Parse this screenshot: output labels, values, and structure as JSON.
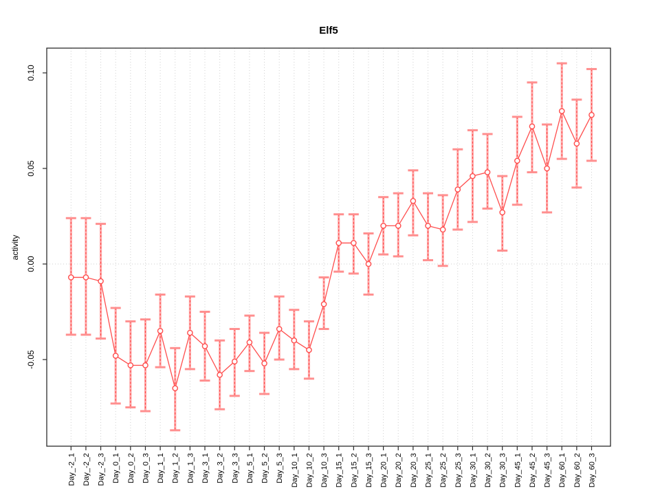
{
  "title": "Elf5",
  "y_axis_label": "activity",
  "chart_data": {
    "type": "scatter",
    "subtype": "points-with-error-bars",
    "title": "Elf5",
    "xlabel": "",
    "ylabel": "activity",
    "ylim": [
      -0.095,
      0.113
    ],
    "y_ticks": [
      0.1,
      0.05,
      0.0,
      -0.05
    ],
    "y_tick_labels": [
      "0.10",
      "0.05",
      "0.00",
      "-0.05"
    ],
    "grid": "vertical-dotted-at-each-category-plus-zero-line",
    "legend": "none",
    "categories": [
      "Day_-2_1",
      "Day_-2_2",
      "Day_-2_3",
      "Day_0_1",
      "Day_0_2",
      "Day_0_3",
      "Day_1_1",
      "Day_1_2",
      "Day_1_3",
      "Day_3_1",
      "Day_3_2",
      "Day_3_3",
      "Day_5_1",
      "Day_5_2",
      "Day_5_3",
      "Day_10_1",
      "Day_10_2",
      "Day_10_3",
      "Day_15_1",
      "Day_15_2",
      "Day_15_3",
      "Day_20_1",
      "Day_20_2",
      "Day_20_3",
      "Day_25_1",
      "Day_25_2",
      "Day_25_3",
      "Day_30_1",
      "Day_30_2",
      "Day_30_3",
      "Day_45_1",
      "Day_45_2",
      "Day_45_3",
      "Day_60_1",
      "Day_60_2",
      "Day_60_3"
    ],
    "values": [
      -0.007,
      -0.007,
      -0.009,
      -0.048,
      -0.053,
      -0.053,
      -0.035,
      -0.065,
      -0.036,
      -0.043,
      -0.058,
      -0.051,
      -0.041,
      -0.052,
      -0.034,
      -0.04,
      -0.045,
      -0.021,
      0.011,
      0.011,
      0.0,
      0.02,
      0.02,
      0.033,
      0.02,
      0.018,
      0.039,
      0.046,
      0.048,
      0.027,
      0.054,
      0.072,
      0.05,
      0.08,
      0.063,
      0.078
    ],
    "lower": [
      -0.037,
      -0.037,
      -0.039,
      -0.073,
      -0.075,
      -0.077,
      -0.054,
      -0.087,
      -0.055,
      -0.061,
      -0.076,
      -0.069,
      -0.056,
      -0.068,
      -0.05,
      -0.055,
      -0.06,
      -0.034,
      -0.004,
      -0.005,
      -0.016,
      0.005,
      0.004,
      0.015,
      0.002,
      -0.001,
      0.018,
      0.022,
      0.029,
      0.007,
      0.031,
      0.048,
      0.027,
      0.055,
      0.04,
      0.054
    ],
    "upper": [
      0.024,
      0.024,
      0.021,
      -0.023,
      -0.03,
      -0.029,
      -0.016,
      -0.044,
      -0.017,
      -0.025,
      -0.04,
      -0.034,
      -0.027,
      -0.036,
      -0.017,
      -0.024,
      -0.03,
      -0.007,
      0.026,
      0.026,
      0.016,
      0.035,
      0.037,
      0.049,
      0.037,
      0.036,
      0.06,
      0.07,
      0.068,
      0.046,
      0.077,
      0.095,
      0.073,
      0.105,
      0.086,
      0.102
    ]
  },
  "colors": {
    "point_line_red": "#ff4d4d",
    "errorbar_pink": "#ffacac",
    "cap_pink": "#ff8f8f",
    "grid_gray": "#cfcfcf",
    "axis_black": "#2b2b2b",
    "background": "#ffffff"
  }
}
